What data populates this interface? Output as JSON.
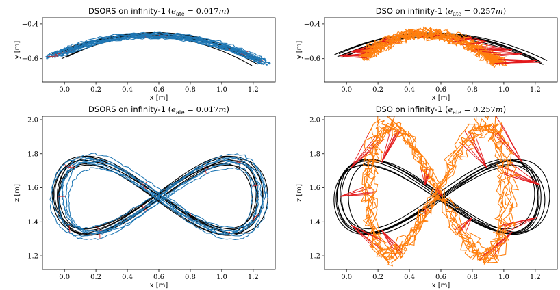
{
  "chart_data": [
    {
      "type": "line",
      "id": "p1",
      "title": {
        "method": "DSORS on infinity-1",
        "error_value": "0.017",
        "unit": "m"
      },
      "xlabel": "x [m]",
      "ylabel": "y [m]",
      "xlim": [
        -0.14,
        1.34
      ],
      "ylim": [
        -0.735,
        -0.365
      ],
      "xticks": [
        "0.0",
        "0.2",
        "0.4",
        "0.6",
        "0.8",
        "1.0",
        "1.2"
      ],
      "yticks": [
        "-0.4",
        "-0.6"
      ],
      "grid": false,
      "view": "xy",
      "series": [
        {
          "role": "ground-truth",
          "color": "#000000"
        },
        {
          "role": "estimate",
          "color": "#1f77b4"
        },
        {
          "role": "estimate-error",
          "color": "#d62728"
        }
      ],
      "trajectory": {
        "cx": 0.6,
        "ax": 0.66,
        "cy": -0.535,
        "ay": 0.09,
        "noise": 0.012,
        "gap": 1.0
      }
    },
    {
      "type": "line",
      "id": "p2",
      "title": {
        "method": "DSO on infinity-1",
        "error_value": "0.257",
        "unit": "m"
      },
      "xlabel": "x [m]",
      "ylabel": "y [m]",
      "xlim": [
        -0.14,
        1.34
      ],
      "ylim": [
        -0.735,
        -0.365
      ],
      "xticks": [
        "0.0",
        "0.2",
        "0.4",
        "0.6",
        "0.8",
        "1.0",
        "1.2"
      ],
      "yticks": [
        "-0.4",
        "-0.6"
      ],
      "grid": false,
      "view": "xy",
      "series": [
        {
          "role": "ground-truth",
          "color": "#000000"
        },
        {
          "role": "estimate",
          "color": "#ff7f0e"
        },
        {
          "role": "estimate-error",
          "color": "#e31a1c"
        }
      ],
      "trajectory": {
        "cx": 0.55,
        "ax": 0.42,
        "cy": -0.525,
        "ay": 0.1,
        "noise": 0.05,
        "gap": 0.2
      }
    },
    {
      "type": "line",
      "id": "p3",
      "title": {
        "method": "DSORS on infinity-1",
        "error_value": "0.017",
        "unit": "m"
      },
      "xlabel": "x [m]",
      "ylabel": "z [m]",
      "xlim": [
        -0.14,
        1.34
      ],
      "ylim": [
        1.12,
        2.02
      ],
      "xticks": [
        "0.0",
        "0.2",
        "0.4",
        "0.6",
        "0.8",
        "1.0",
        "1.2"
      ],
      "yticks": [
        "2.0",
        "1.8",
        "1.6",
        "1.4",
        "1.2"
      ],
      "grid": false,
      "view": "xz",
      "series": [
        {
          "role": "ground-truth",
          "color": "#000000"
        },
        {
          "role": "estimate",
          "color": "#1f77b4"
        },
        {
          "role": "estimate-error",
          "color": "#d62728"
        }
      ],
      "trajectory": {
        "cx": 0.6,
        "ax": 0.64,
        "cz": 1.55,
        "az": 0.21,
        "noise": 0.012,
        "gap": 1.0
      }
    },
    {
      "type": "line",
      "id": "p4",
      "title": {
        "method": "DSO on infinity-1",
        "error_value": "0.257",
        "unit": "m"
      },
      "xlabel": "x [m]",
      "ylabel": "z [m]",
      "xlim": [
        -0.14,
        1.34
      ],
      "ylim": [
        1.12,
        2.02
      ],
      "xticks": [
        "0.0",
        "0.2",
        "0.4",
        "0.6",
        "0.8",
        "1.0",
        "1.2"
      ],
      "yticks": [
        "2.0",
        "1.8",
        "1.6",
        "1.4",
        "1.2"
      ],
      "grid": false,
      "view": "xz",
      "series": [
        {
          "role": "ground-truth",
          "color": "#000000"
        },
        {
          "role": "estimate",
          "color": "#ff7f0e"
        },
        {
          "role": "estimate-error",
          "color": "#e31a1c"
        }
      ],
      "trajectory": {
        "cx": 0.58,
        "ax": 0.44,
        "cz": 1.58,
        "az": 0.38,
        "noise": 0.06,
        "gap": 0.2
      }
    }
  ]
}
